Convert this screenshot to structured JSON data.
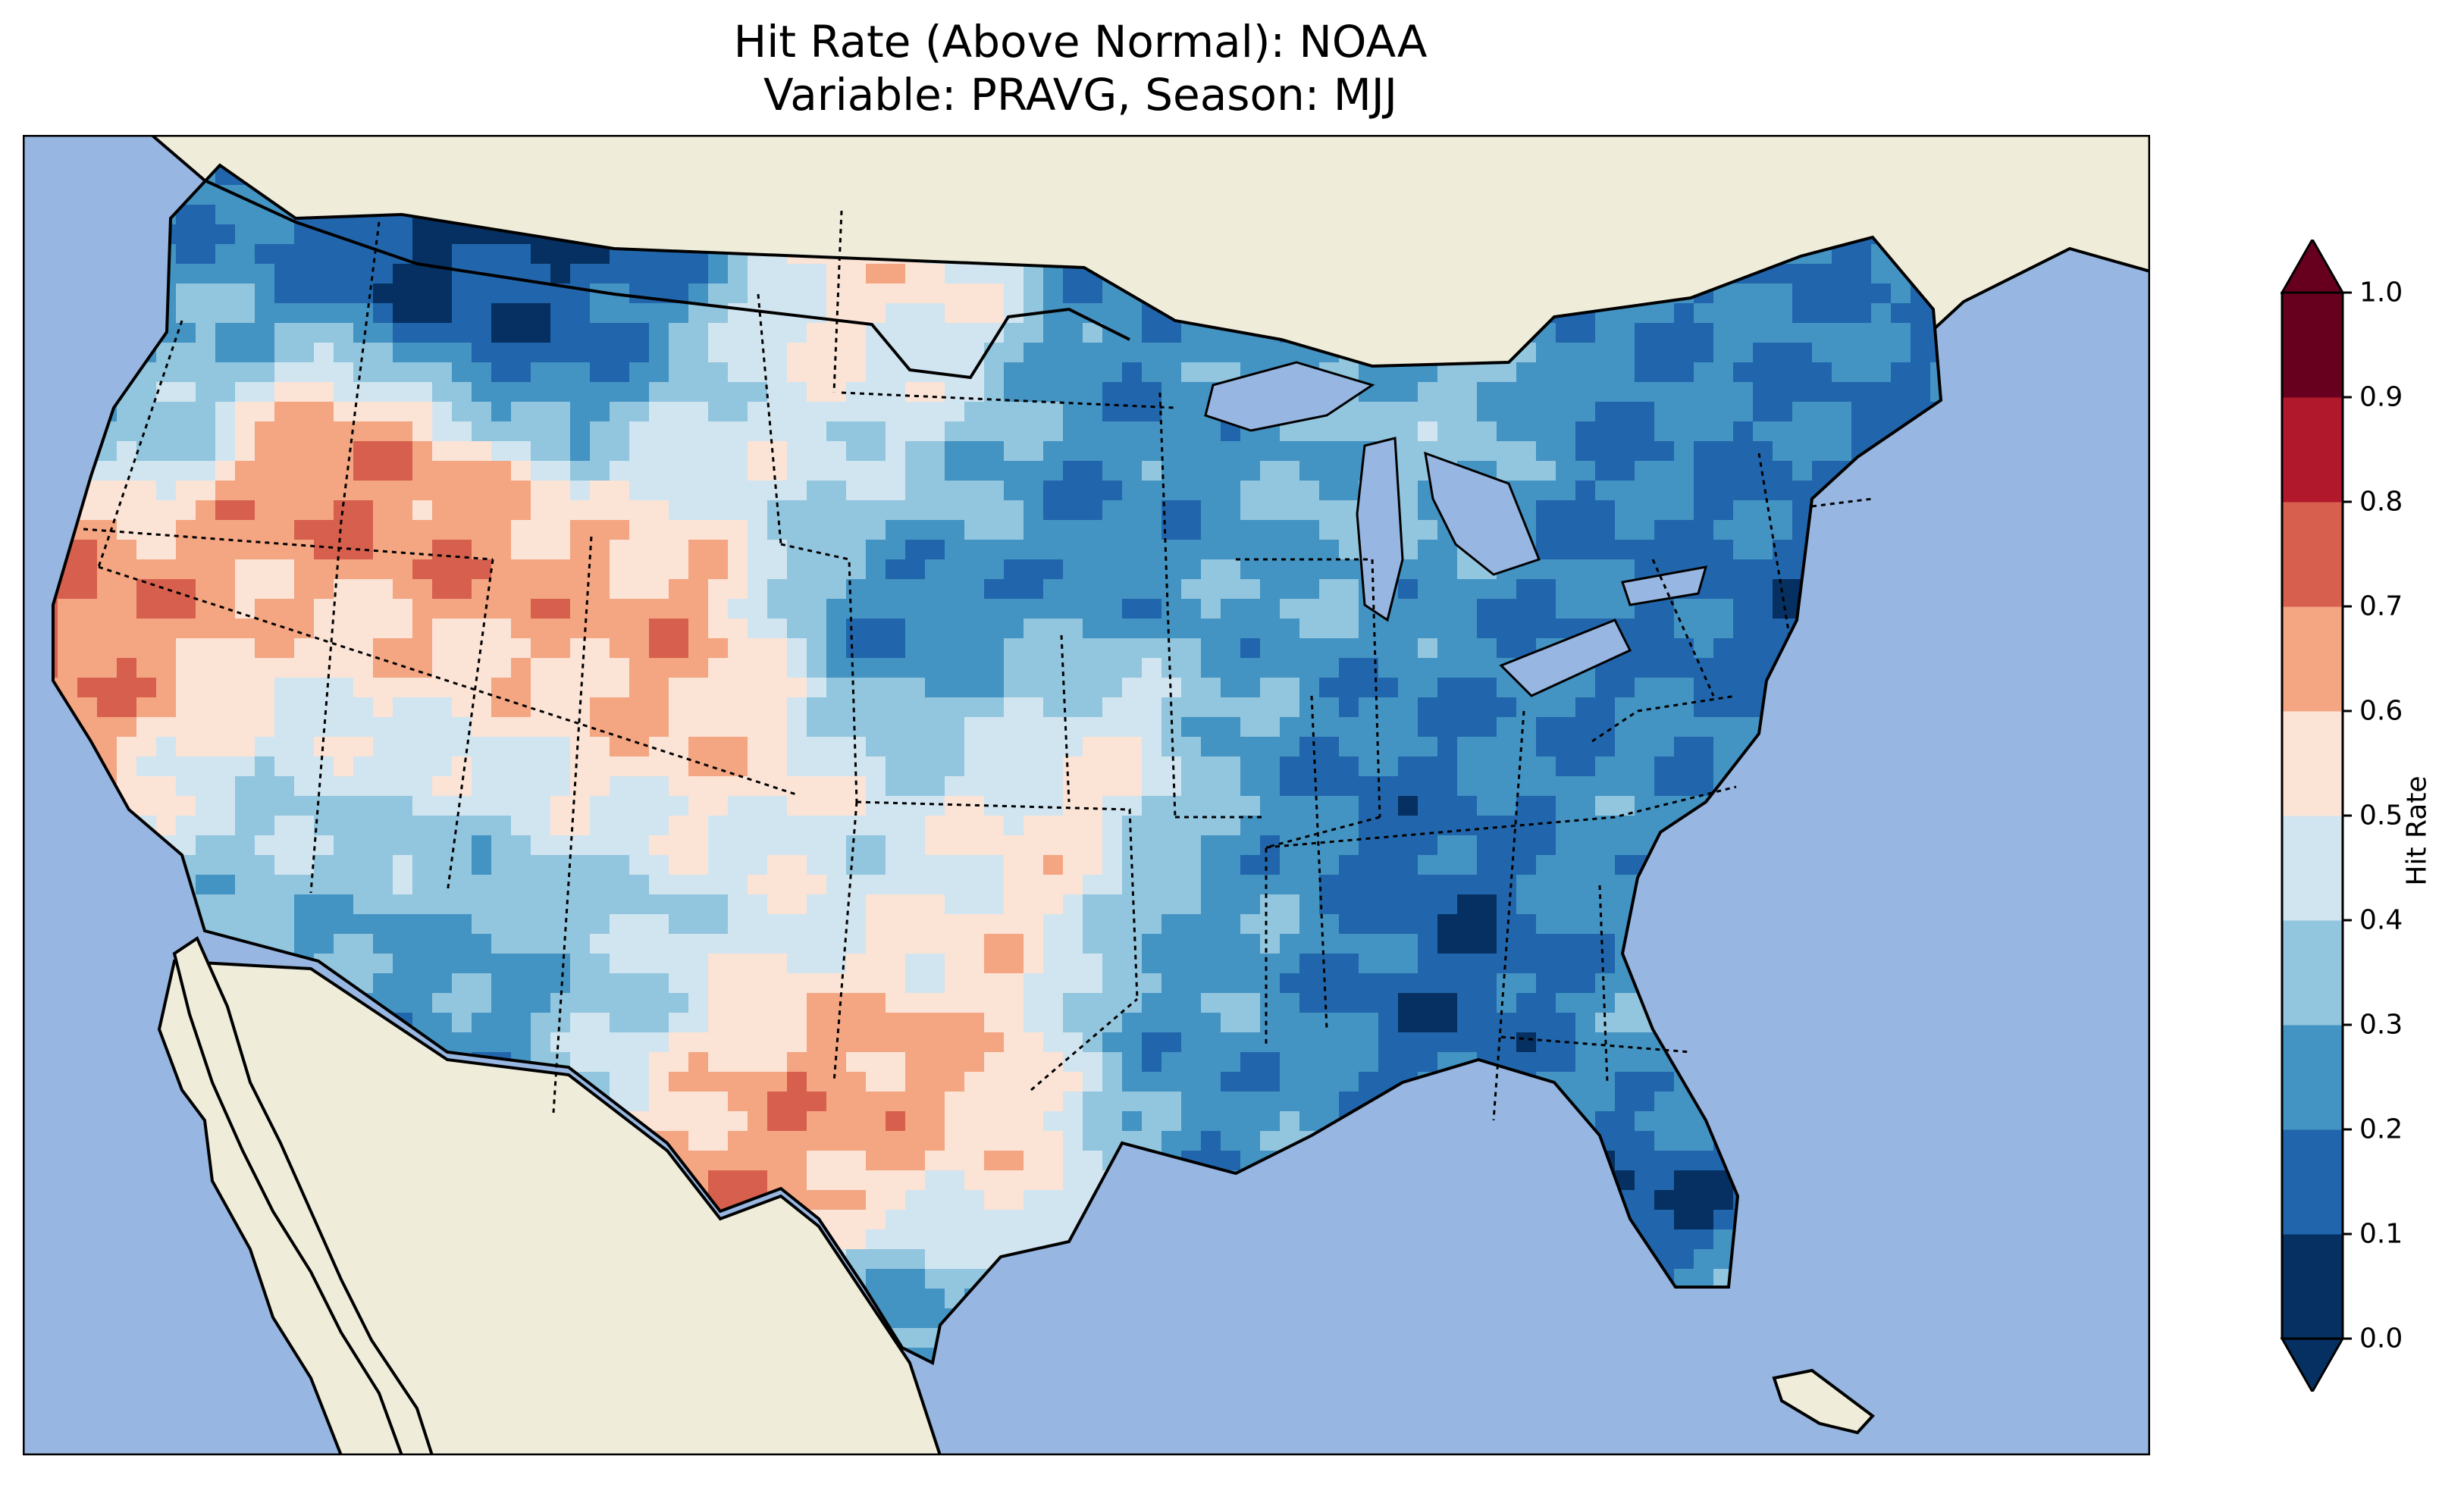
{
  "title": {
    "line1": "Hit Rate (Above Normal): NOAA",
    "line2": "Variable: PRAVG, Season: MJJ"
  },
  "map": {
    "region": "Contiguous United States",
    "ocean_color": "#97b6e1",
    "land_color": "#efedda",
    "colormap": "RdBu_r"
  },
  "chart_data": {
    "type": "heatmap",
    "title": "Hit Rate (Above Normal): NOAA",
    "subtitle": "Variable: PRAVG, Season: MJJ",
    "colorbar": {
      "label": "Hit Rate",
      "range": [
        0.0,
        1.0
      ],
      "ticks": [
        "0.0",
        "0.1",
        "0.2",
        "0.3",
        "0.4",
        "0.5",
        "0.6",
        "0.7",
        "0.8",
        "0.9",
        "1.0"
      ],
      "extend": "both",
      "placement": "right",
      "bins": [
        {
          "range": [
            0.0,
            0.1
          ],
          "color": "#053061"
        },
        {
          "range": [
            0.1,
            0.2
          ],
          "color": "#2166ac"
        },
        {
          "range": [
            0.2,
            0.3
          ],
          "color": "#4393c3"
        },
        {
          "range": [
            0.3,
            0.4
          ],
          "color": "#92c5de"
        },
        {
          "range": [
            0.4,
            0.5
          ],
          "color": "#d1e5f0"
        },
        {
          "range": [
            0.5,
            0.6
          ],
          "color": "#fbe3d6"
        },
        {
          "range": [
            0.6,
            0.7
          ],
          "color": "#f4a582"
        },
        {
          "range": [
            0.7,
            0.8
          ],
          "color": "#d6604d"
        },
        {
          "range": [
            0.8,
            0.9
          ],
          "color": "#b2182b"
        },
        {
          "range": [
            0.9,
            1.0
          ],
          "color": "#67001f"
        }
      ],
      "under_color": "#053061",
      "over_color": "#67001f"
    }
  }
}
